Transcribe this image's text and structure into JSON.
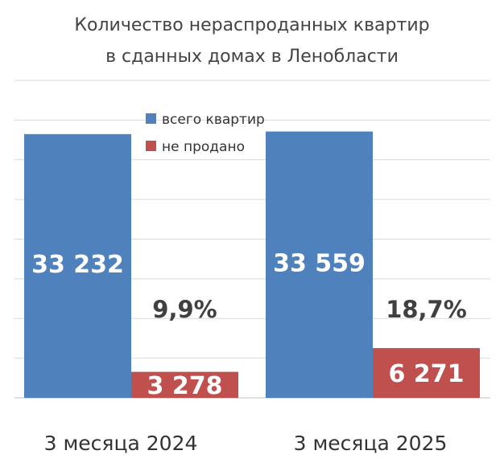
{
  "chart_data": {
    "type": "bar",
    "title": "Количество нераспроданных квартир в сданных домах в Ленобласти",
    "title_lines": [
      "Количество нераспроданных квартир",
      "в сданных домах в Ленобласти"
    ],
    "categories": [
      "3 месяца 2024",
      "3 месяца 2025"
    ],
    "series": [
      {
        "name": "всего квартир",
        "values": [
          33232,
          33559
        ],
        "labels": [
          "33 232",
          "33 559"
        ],
        "color": "#4f81bd"
      },
      {
        "name": "не продано",
        "values": [
          3278,
          6271
        ],
        "labels": [
          "3 278",
          "6 271"
        ],
        "color": "#c0504d"
      }
    ],
    "annotations": [
      "9,9%",
      "18,7%"
    ],
    "ylim": [
      0,
      40000
    ],
    "grid": true,
    "legend_position": "top-center"
  }
}
